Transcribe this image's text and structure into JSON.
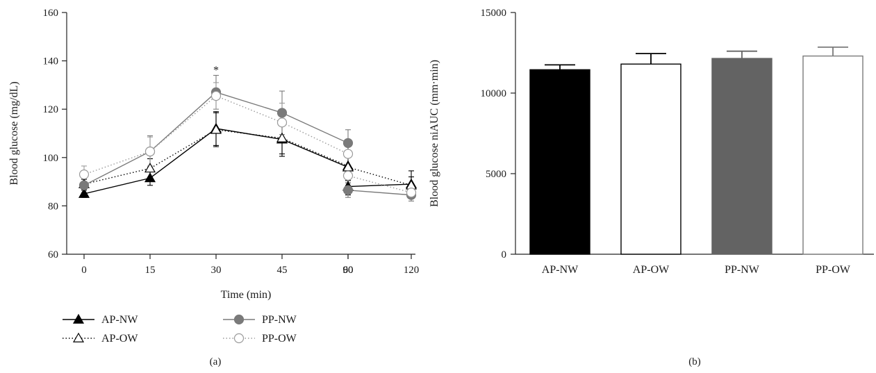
{
  "chart_data": [
    {
      "type": "line",
      "panel_label": "(a)",
      "xlabel": "Time (min)",
      "ylabel": "Blood glucose (mg/dL)",
      "x": [
        0,
        15,
        30,
        45,
        60,
        90,
        120
      ],
      "xticks": [
        "0",
        "15",
        "30",
        "45",
        "60",
        "90",
        "120"
      ],
      "ylim": [
        60,
        160
      ],
      "yticks": [
        "60",
        "80",
        "100",
        "120",
        "140",
        "160"
      ],
      "annotation": "*",
      "annotation_x": 30,
      "legend_placement": "bottom",
      "series": [
        {
          "name": "AP-NW",
          "key": "apnw",
          "marker": "triangle-filled",
          "line": "solid",
          "color": "#000000",
          "values": [
            85,
            91.5,
            112,
            107.5,
            96,
            88,
            89
          ],
          "errors": [
            1.5,
            3,
            7,
            7,
            6.5,
            3.5,
            5.5
          ]
        },
        {
          "name": "AP-OW",
          "key": "apow",
          "marker": "triangle-open",
          "line": "dotted",
          "color": "#000000",
          "values": [
            89,
            95.5,
            111.5,
            108,
            96.5,
            96,
            88.5
          ],
          "errors": [
            2,
            4,
            7,
            6.5,
            6,
            5.5,
            3.5
          ]
        },
        {
          "name": "PP-NW",
          "key": "ppnw",
          "marker": "circle-filled",
          "line": "solid",
          "color": "#7a7a7a",
          "values": [
            88.5,
            102.5,
            127,
            118.5,
            106,
            86.5,
            84.5
          ],
          "errors": [
            3,
            6.5,
            7,
            9,
            5.5,
            3,
            2.5
          ]
        },
        {
          "name": "PP-OW",
          "key": "ppow",
          "marker": "circle-open",
          "line": "dotted",
          "color": "#9a9a9a",
          "values": [
            93,
            102.5,
            125.5,
            114.5,
            101.5,
            92.5,
            85.5
          ],
          "errors": [
            3.5,
            6,
            5.5,
            8,
            6,
            4,
            2.5
          ]
        }
      ]
    },
    {
      "type": "bar",
      "panel_label": "(b)",
      "xlabel": "",
      "ylabel": "Blood glucose niAUC (mm·min)",
      "categories": [
        "AP-NW",
        "AP-OW",
        "PP-NW",
        "PP-OW"
      ],
      "values": [
        11450,
        11800,
        12150,
        12300
      ],
      "errors": [
        300,
        650,
        450,
        550
      ],
      "fills": [
        "#000000",
        "#ffffff",
        "#636363",
        "#ffffff"
      ],
      "strokes": [
        "#000000",
        "#000000",
        "#636363",
        "#7a7a7a"
      ],
      "ylim": [
        0,
        15000
      ],
      "yticks": [
        "0",
        "5000",
        "10000",
        "15000"
      ]
    }
  ]
}
